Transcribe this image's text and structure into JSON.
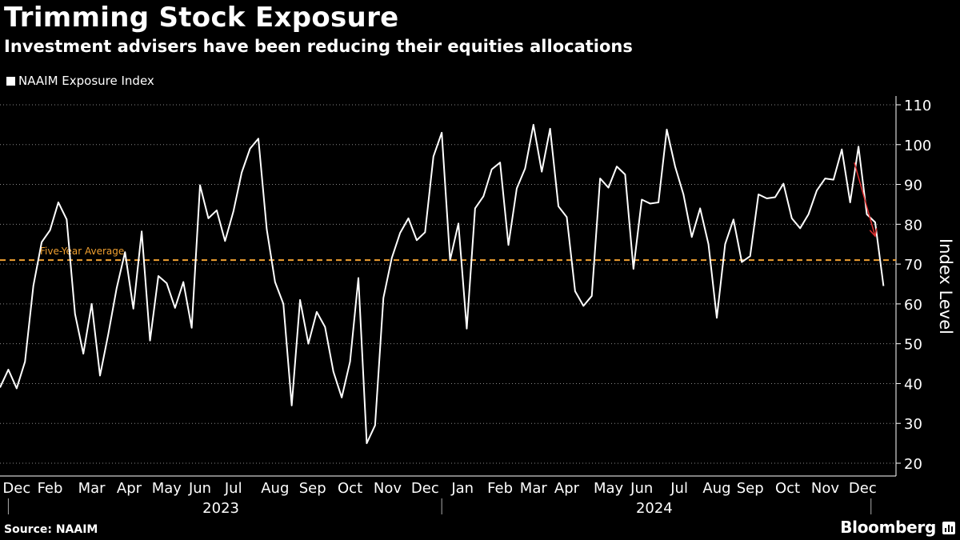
{
  "header": {
    "title": "Trimming Stock Exposure",
    "subtitle": "Investment advisers have been reducing their equities allocations"
  },
  "legend": {
    "label": "NAAIM Exposure Index"
  },
  "footer": {
    "source": "Source: NAAIM",
    "brand": "Bloomberg"
  },
  "colors": {
    "line": "#ffffff",
    "reference": "#f0a030",
    "arrow": "#e03030",
    "grid": "#888888"
  },
  "chart_data": {
    "type": "line",
    "title": "Trimming Stock Exposure",
    "ylabel": "Index Level",
    "xlabel": "",
    "ylim": [
      20,
      110
    ],
    "yticks": [
      20,
      30,
      40,
      50,
      60,
      70,
      80,
      90,
      100,
      110
    ],
    "month_labels": [
      "Dec",
      "Feb",
      "Mar",
      "Apr",
      "May",
      "Jun",
      "Jul",
      "Aug",
      "Sep",
      "Oct",
      "Nov",
      "Dec",
      "Jan",
      "Feb",
      "Mar",
      "Apr",
      "May",
      "Jun",
      "Jul",
      "Aug",
      "Sep",
      "Oct",
      "Nov",
      "Dec"
    ],
    "month_label_t": [
      2,
      6,
      11,
      15.5,
      20,
      24,
      28,
      33,
      37.5,
      42,
      46.5,
      51,
      55.5,
      60,
      64,
      68,
      73,
      77,
      81.5,
      86,
      90,
      94.5,
      99,
      103.5
    ],
    "year_labels": [
      "2023",
      "2024"
    ],
    "year_label_t": [
      26.5,
      78.5
    ],
    "year_boundaries_t": [
      1,
      53,
      104.5
    ],
    "reference_line": {
      "label": "Five-Year Average",
      "value": 71
    },
    "series": [
      {
        "name": "NAAIM Exposure Index",
        "values": [
          39,
          43.5,
          38.8,
          45.5,
          64.5,
          75.5,
          78.5,
          85.5,
          81.2,
          57.5,
          47.5,
          60,
          42,
          52.5,
          64,
          73,
          58.8,
          78.2,
          50.8,
          67,
          65.2,
          59,
          65.5,
          54,
          89.8,
          81.5,
          83.5,
          75.8,
          83.2,
          93,
          99,
          101.5,
          78.8,
          65.5,
          60,
          34.5,
          61,
          50,
          58,
          54.2,
          43,
          36.5,
          45.5,
          66.5,
          25,
          29.5,
          61.5,
          71.5,
          77.8,
          81.5,
          76,
          78,
          97,
          103,
          71,
          80.2,
          53.8,
          84,
          87,
          93.8,
          95.5,
          74.8,
          89,
          94,
          105,
          93.2,
          104,
          84.5,
          81.8,
          63.2,
          59.5,
          62,
          91.5,
          89.2,
          94.5,
          92.5,
          68.8,
          86.2,
          85.2,
          85.5,
          103.8,
          94.5,
          87.5,
          76.8,
          84,
          75,
          56.5,
          75,
          81.2,
          70.5,
          72,
          87.5,
          86.5,
          86.8,
          90.2,
          81.5,
          79,
          82.5,
          88.5,
          91.5,
          91.2,
          98.8,
          85.5,
          99.5,
          82.5,
          80.5,
          64.5
        ]
      }
    ],
    "trend_arrow": {
      "from": {
        "t": 102.5,
        "v": 95.5
      },
      "to": {
        "t": 105,
        "v": 77
      }
    }
  }
}
